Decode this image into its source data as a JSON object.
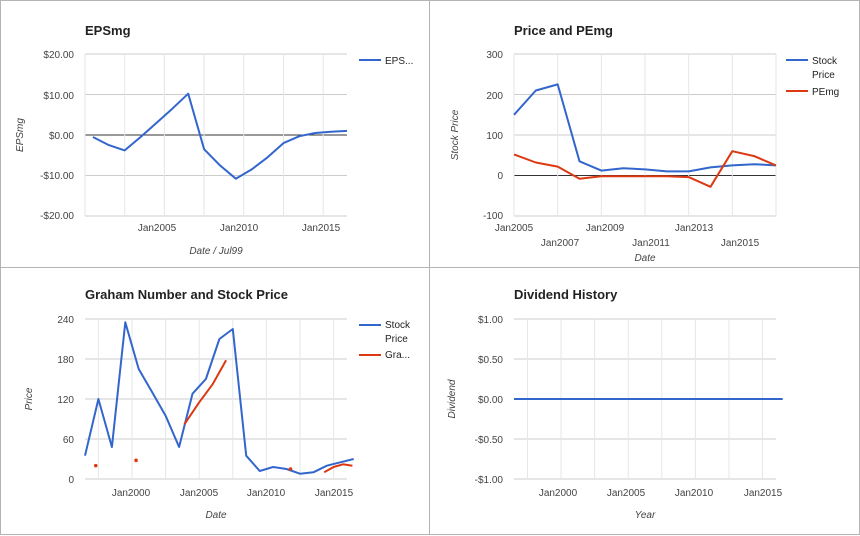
{
  "chart_data": [
    {
      "type": "line",
      "title": "EPSmg",
      "xlabel": "Date / Jul99",
      "ylabel": "EPSmg",
      "ylim": [
        -20,
        20
      ],
      "yticks": [
        "$20.00",
        "$10.00",
        "$0.00",
        "-$10.00",
        "-$20.00"
      ],
      "xticks": [
        "Jan2005",
        "Jan2010",
        "Jan2015"
      ],
      "legend": "right",
      "grid": true,
      "series": [
        {
          "name": "EPS...",
          "color": "#3366cc",
          "x": [
            2000.5,
            2001.5,
            2002.5,
            2003.5,
            2004.5,
            2005.5,
            2006.5,
            2007.5,
            2008.5,
            2009.5,
            2010.5,
            2011.5,
            2012.5,
            2013.5,
            2014.5,
            2015.5,
            2016.5
          ],
          "values": [
            -0.5,
            -2.5,
            -3.8,
            -0.5,
            3.0,
            6.5,
            10.2,
            -3.5,
            -7.5,
            -10.8,
            -8.5,
            -5.5,
            -2.0,
            -0.3,
            0.5,
            0.8,
            1.0
          ]
        }
      ]
    },
    {
      "type": "line",
      "title": "Price and PEmg",
      "xlabel": "Date",
      "ylabel": "Stock Price",
      "ylim": [
        -100,
        300
      ],
      "yticks": [
        "300",
        "200",
        "100",
        "0",
        "-100"
      ],
      "xticks_top": [
        "Jan2005",
        "Jan2009",
        "Jan2013"
      ],
      "xticks_bottom": [
        "Jan2007",
        "Jan2011",
        "Jan2015"
      ],
      "legend": "right",
      "grid": true,
      "series": [
        {
          "name": "Stock Price",
          "color": "#3366cc",
          "x": [
            2005.0,
            2006.0,
            2007.0,
            2008.0,
            2009.0,
            2010.0,
            2011.0,
            2012.0,
            2013.0,
            2014.0,
            2015.0,
            2016.0,
            2017.0
          ],
          "values": [
            150,
            210,
            225,
            35,
            12,
            18,
            15,
            10,
            10,
            20,
            25,
            28,
            25
          ]
        },
        {
          "name": "PEmg",
          "color": "#dc3912",
          "x": [
            2005.0,
            2006.0,
            2007.0,
            2008.0,
            2009.0,
            2010.0,
            2011.0,
            2012.0,
            2013.0,
            2014.0,
            2015.0,
            2016.0,
            2017.0
          ],
          "values": [
            52,
            32,
            22,
            -8,
            -2,
            -2,
            -2,
            -2,
            -4,
            -28,
            60,
            48,
            25
          ]
        }
      ]
    },
    {
      "type": "line",
      "title": "Graham Number and Stock Price",
      "xlabel": "Date",
      "ylabel": "Price",
      "ylim": [
        0,
        240
      ],
      "yticks": [
        "240",
        "180",
        "120",
        "60",
        "0"
      ],
      "xticks": [
        "Jan2000",
        "Jan2005",
        "Jan2010",
        "Jan2015"
      ],
      "legend": "right",
      "grid": true,
      "series": [
        {
          "name": "Stock Price",
          "color": "#3366cc",
          "x": [
            1996.5,
            1997.5,
            1998.5,
            1999.5,
            2000.5,
            2001.5,
            2002.5,
            2003.5,
            2004.5,
            2005.5,
            2006.5,
            2007.5,
            2008.5,
            2009.5,
            2010.5,
            2011.5,
            2012.5,
            2013.5,
            2014.5,
            2015.5,
            2016.5
          ],
          "values": [
            35,
            120,
            48,
            235,
            165,
            130,
            95,
            48,
            128,
            150,
            210,
            225,
            35,
            12,
            18,
            15,
            8,
            10,
            20,
            25,
            30
          ]
        },
        {
          "name": "Gra...",
          "color": "#dc3912",
          "x": [
            1997.3,
            2000.3,
            2003.9,
            2005.0,
            2006.0,
            2007.0,
            2011.8,
            2014.3,
            2015.0,
            2015.7,
            2016.4
          ],
          "values": [
            20,
            28,
            82,
            115,
            142,
            178,
            15,
            10,
            18,
            22,
            20
          ],
          "segments": [
            [
              0,
              0
            ],
            [
              1,
              1
            ],
            [
              2,
              5
            ],
            [
              6,
              6
            ],
            [
              7,
              10
            ]
          ]
        }
      ]
    },
    {
      "type": "line",
      "title": "Dividend History",
      "xlabel": "Year",
      "ylabel": "Dividend",
      "ylim": [
        -1,
        1
      ],
      "yticks": [
        "$1.00",
        "$0.50",
        "$0.00",
        "-$0.50",
        "-$1.00"
      ],
      "xticks": [
        "Jan2000",
        "Jan2005",
        "Jan2010",
        "Jan2015"
      ],
      "grid": true,
      "series": [
        {
          "color": "#3366cc",
          "x": [
            1996.5,
            2016.5
          ],
          "values": [
            0,
            0
          ]
        }
      ]
    }
  ]
}
